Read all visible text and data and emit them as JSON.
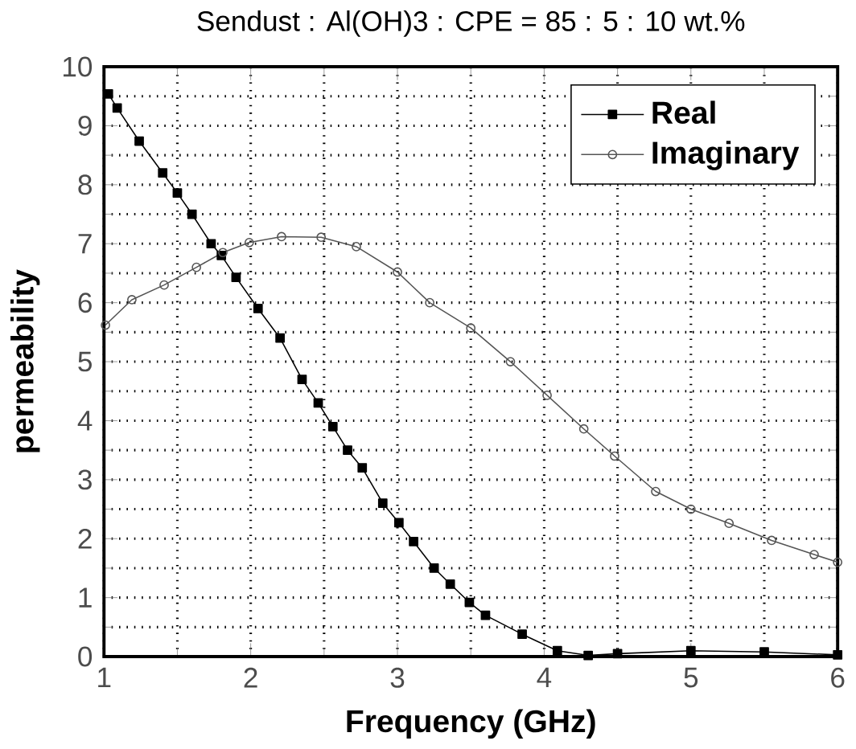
{
  "chart_data": {
    "type": "line",
    "title": "Sendust : Al(OH)3 : CPE = 85 : 5 : 10 wt.%",
    "xlabel": "Frequency (GHz)",
    "ylabel": "permeability",
    "xlim": [
      1,
      6
    ],
    "ylim": [
      0,
      10
    ],
    "xticks": [
      1,
      2,
      3,
      4,
      5,
      6
    ],
    "yticks": [
      0,
      1,
      2,
      3,
      4,
      5,
      6,
      7,
      8,
      9,
      10
    ],
    "grid": true,
    "legend": "top right",
    "series": [
      {
        "name": "Real",
        "color": "#000000",
        "marker": "square",
        "x": [
          1.03,
          1.09,
          1.24,
          1.4,
          1.5,
          1.6,
          1.73,
          1.8,
          1.9,
          2.05,
          2.2,
          2.35,
          2.46,
          2.56,
          2.66,
          2.76,
          2.9,
          3.01,
          3.11,
          3.25,
          3.36,
          3.49,
          3.6,
          3.85,
          4.09,
          4.3,
          4.5,
          5.0,
          5.5,
          6.0
        ],
        "values": [
          9.54,
          9.3,
          8.74,
          8.2,
          7.86,
          7.5,
          7.0,
          6.8,
          6.43,
          5.9,
          5.4,
          4.7,
          4.3,
          3.9,
          3.5,
          3.2,
          2.6,
          2.27,
          1.95,
          1.5,
          1.23,
          0.92,
          0.7,
          0.38,
          0.1,
          0.02,
          0.05,
          0.1,
          0.08,
          0.03
        ]
      },
      {
        "name": "Imaginary",
        "color": "#555555",
        "marker": "circle",
        "x": [
          1.01,
          1.19,
          1.41,
          1.63,
          1.81,
          1.99,
          2.21,
          2.48,
          2.72,
          3.0,
          3.22,
          3.5,
          3.77,
          4.02,
          4.27,
          4.48,
          4.76,
          5.0,
          5.26,
          5.55,
          5.84,
          6.0
        ],
        "values": [
          5.62,
          6.05,
          6.3,
          6.6,
          6.85,
          7.02,
          7.12,
          7.11,
          6.95,
          6.52,
          6.0,
          5.57,
          5.0,
          4.43,
          3.86,
          3.4,
          2.8,
          2.5,
          2.26,
          1.97,
          1.73,
          1.6
        ]
      }
    ]
  }
}
